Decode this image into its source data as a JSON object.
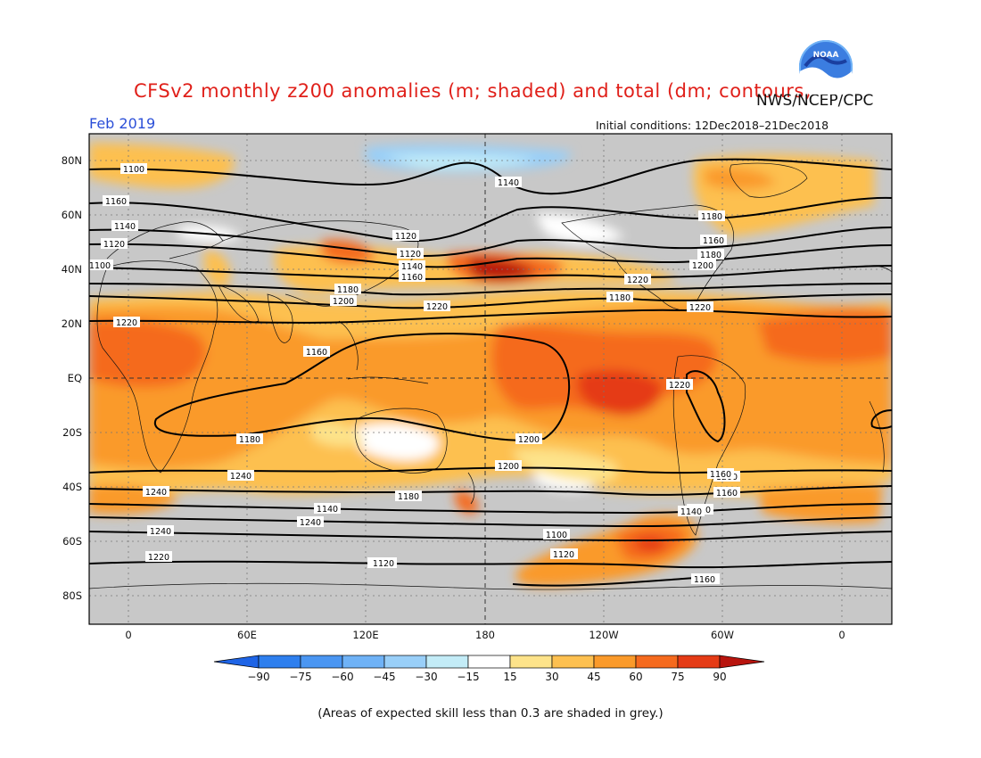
{
  "header": {
    "title": "CFSv2 monthly z200 anomalies (m; shaded) and total (dm; contours)",
    "agency": "NWS/NCEP/CPC",
    "month": "Feb 2019",
    "initial_conditions": "Initial conditions: 12Dec2018–21Dec2018",
    "logo_text": "NOAA"
  },
  "map": {
    "lat_labels": [
      "80N",
      "60N",
      "40N",
      "20N",
      "EQ",
      "20S",
      "40S",
      "60S",
      "80S"
    ],
    "lon_labels": [
      "0",
      "60E",
      "120E",
      "180",
      "120W",
      "60W",
      "0"
    ],
    "contour_labels": [
      "1100",
      "1120",
      "1140",
      "1160",
      "1180",
      "1200",
      "1220",
      "1240",
      "1240",
      "1240",
      "1240",
      "1220",
      "1200",
      "1180",
      "1160",
      "1140",
      "1120",
      "1100",
      "1120",
      "1140",
      "1160",
      "1180",
      "1200",
      "1220",
      "1220",
      "1220",
      "1200",
      "1200",
      "1180",
      "1160",
      "1140",
      "1120",
      "1100",
      "1120",
      "1140",
      "1160",
      "1180",
      "1200",
      "1220",
      "1180",
      "1160",
      "1140",
      "1120",
      "1120",
      "1160"
    ]
  },
  "colorbar": {
    "labels": [
      "−90",
      "−75",
      "−60",
      "−45",
      "−30",
      "−15",
      "15",
      "30",
      "45",
      "60",
      "75",
      "90"
    ],
    "colors": [
      "#1e64e6",
      "#2e7fee",
      "#4a96f2",
      "#6fb2f6",
      "#99cff8",
      "#c3ecf7",
      "#ffffff",
      "#fde38a",
      "#fdc050",
      "#fa9a2a",
      "#f56a1e",
      "#e53b16",
      "#b8140e"
    ]
  },
  "footnote": "(Areas of expected skill less than 0.3 are shaded in grey.)",
  "colors": {
    "skill_grey": "#c8c8c8",
    "title_red": "#e0201a",
    "month_blue": "#2b4fd8"
  }
}
